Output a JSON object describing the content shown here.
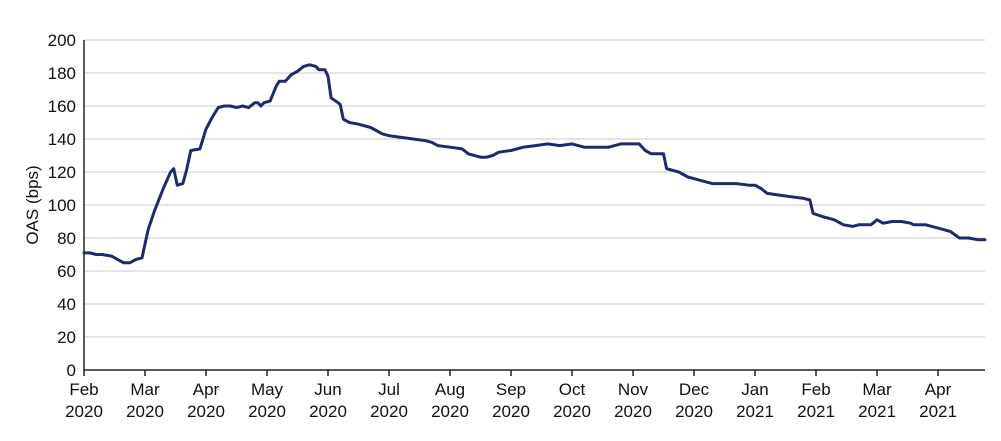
{
  "chart_data": {
    "type": "line",
    "title": "",
    "ylabel": "OAS (bps)",
    "xlabel": "",
    "ylim": [
      0,
      200
    ],
    "yticks": [
      0,
      20,
      40,
      60,
      80,
      100,
      120,
      140,
      160,
      180,
      200
    ],
    "xlim": [
      0,
      14.77
    ],
    "grid": true,
    "x_ticks": [
      {
        "x": 0,
        "line1": "Feb",
        "line2": "2020"
      },
      {
        "x": 1,
        "line1": "Mar",
        "line2": "2020"
      },
      {
        "x": 2,
        "line1": "Apr",
        "line2": "2020"
      },
      {
        "x": 3,
        "line1": "May",
        "line2": "2020"
      },
      {
        "x": 4,
        "line1": "Jun",
        "line2": "2020"
      },
      {
        "x": 5,
        "line1": "Jul",
        "line2": "2020"
      },
      {
        "x": 6,
        "line1": "Aug",
        "line2": "2020"
      },
      {
        "x": 7,
        "line1": "Sep",
        "line2": "2020"
      },
      {
        "x": 8,
        "line1": "Oct",
        "line2": "2020"
      },
      {
        "x": 9,
        "line1": "Nov",
        "line2": "2020"
      },
      {
        "x": 10,
        "line1": "Dec",
        "line2": "2020"
      },
      {
        "x": 11,
        "line1": "Jan",
        "line2": "2021"
      },
      {
        "x": 12,
        "line1": "Feb",
        "line2": "2021"
      },
      {
        "x": 13,
        "line1": "Mar",
        "line2": "2021"
      },
      {
        "x": 14,
        "line1": "Apr",
        "line2": "2021"
      }
    ],
    "line_color": "#1f2a6b",
    "series": [
      {
        "points": [
          [
            0.0,
            71
          ],
          [
            0.1,
            71
          ],
          [
            0.2,
            70
          ],
          [
            0.3,
            70
          ],
          [
            0.45,
            69
          ],
          [
            0.55,
            67
          ],
          [
            0.65,
            65
          ],
          [
            0.75,
            65
          ],
          [
            0.85,
            67
          ],
          [
            0.95,
            68
          ],
          [
            1.05,
            85
          ],
          [
            1.15,
            96
          ],
          [
            1.3,
            110
          ],
          [
            1.42,
            120
          ],
          [
            1.47,
            122
          ],
          [
            1.53,
            112
          ],
          [
            1.62,
            113
          ],
          [
            1.68,
            121
          ],
          [
            1.75,
            133
          ],
          [
            1.9,
            134
          ],
          [
            2.0,
            146
          ],
          [
            2.1,
            153
          ],
          [
            2.2,
            159
          ],
          [
            2.3,
            160
          ],
          [
            2.4,
            160
          ],
          [
            2.5,
            159
          ],
          [
            2.6,
            160
          ],
          [
            2.7,
            159
          ],
          [
            2.8,
            162
          ],
          [
            2.85,
            162
          ],
          [
            2.9,
            160
          ],
          [
            2.95,
            162
          ],
          [
            3.05,
            163
          ],
          [
            3.15,
            172
          ],
          [
            3.2,
            175
          ],
          [
            3.3,
            175
          ],
          [
            3.4,
            179
          ],
          [
            3.5,
            181
          ],
          [
            3.6,
            184
          ],
          [
            3.7,
            185
          ],
          [
            3.8,
            184
          ],
          [
            3.85,
            182
          ],
          [
            3.95,
            182
          ],
          [
            4.0,
            178
          ],
          [
            4.05,
            165
          ],
          [
            4.2,
            161
          ],
          [
            4.25,
            152
          ],
          [
            4.35,
            150
          ],
          [
            4.5,
            149
          ],
          [
            4.7,
            147
          ],
          [
            4.9,
            143
          ],
          [
            5.0,
            142
          ],
          [
            5.2,
            141
          ],
          [
            5.4,
            140
          ],
          [
            5.6,
            139
          ],
          [
            5.7,
            138
          ],
          [
            5.8,
            136
          ],
          [
            6.0,
            135
          ],
          [
            6.2,
            134
          ],
          [
            6.3,
            131
          ],
          [
            6.4,
            130
          ],
          [
            6.5,
            129
          ],
          [
            6.6,
            129
          ],
          [
            6.7,
            130
          ],
          [
            6.8,
            132
          ],
          [
            7.0,
            133
          ],
          [
            7.2,
            135
          ],
          [
            7.4,
            136
          ],
          [
            7.6,
            137
          ],
          [
            7.8,
            136
          ],
          [
            8.0,
            137
          ],
          [
            8.2,
            135
          ],
          [
            8.4,
            135
          ],
          [
            8.6,
            135
          ],
          [
            8.8,
            137
          ],
          [
            9.0,
            137
          ],
          [
            9.1,
            137
          ],
          [
            9.2,
            133
          ],
          [
            9.3,
            131
          ],
          [
            9.4,
            131
          ],
          [
            9.5,
            131
          ],
          [
            9.55,
            122
          ],
          [
            9.75,
            120
          ],
          [
            9.9,
            117
          ],
          [
            10.1,
            115
          ],
          [
            10.3,
            113
          ],
          [
            10.5,
            113
          ],
          [
            10.7,
            113
          ],
          [
            10.9,
            112
          ],
          [
            11.0,
            112
          ],
          [
            11.1,
            110
          ],
          [
            11.2,
            107
          ],
          [
            11.4,
            106
          ],
          [
            11.6,
            105
          ],
          [
            11.8,
            104
          ],
          [
            11.9,
            103
          ],
          [
            11.95,
            95
          ],
          [
            12.1,
            93
          ],
          [
            12.3,
            91
          ],
          [
            12.45,
            88
          ],
          [
            12.6,
            87
          ],
          [
            12.7,
            88
          ],
          [
            12.9,
            88
          ],
          [
            13.0,
            91
          ],
          [
            13.1,
            89
          ],
          [
            13.25,
            90
          ],
          [
            13.4,
            90
          ],
          [
            13.55,
            89
          ],
          [
            13.6,
            88
          ],
          [
            13.8,
            88
          ],
          [
            14.0,
            86
          ],
          [
            14.2,
            84
          ],
          [
            14.35,
            80
          ],
          [
            14.5,
            80
          ],
          [
            14.65,
            79
          ],
          [
            14.77,
            79
          ]
        ]
      }
    ]
  }
}
